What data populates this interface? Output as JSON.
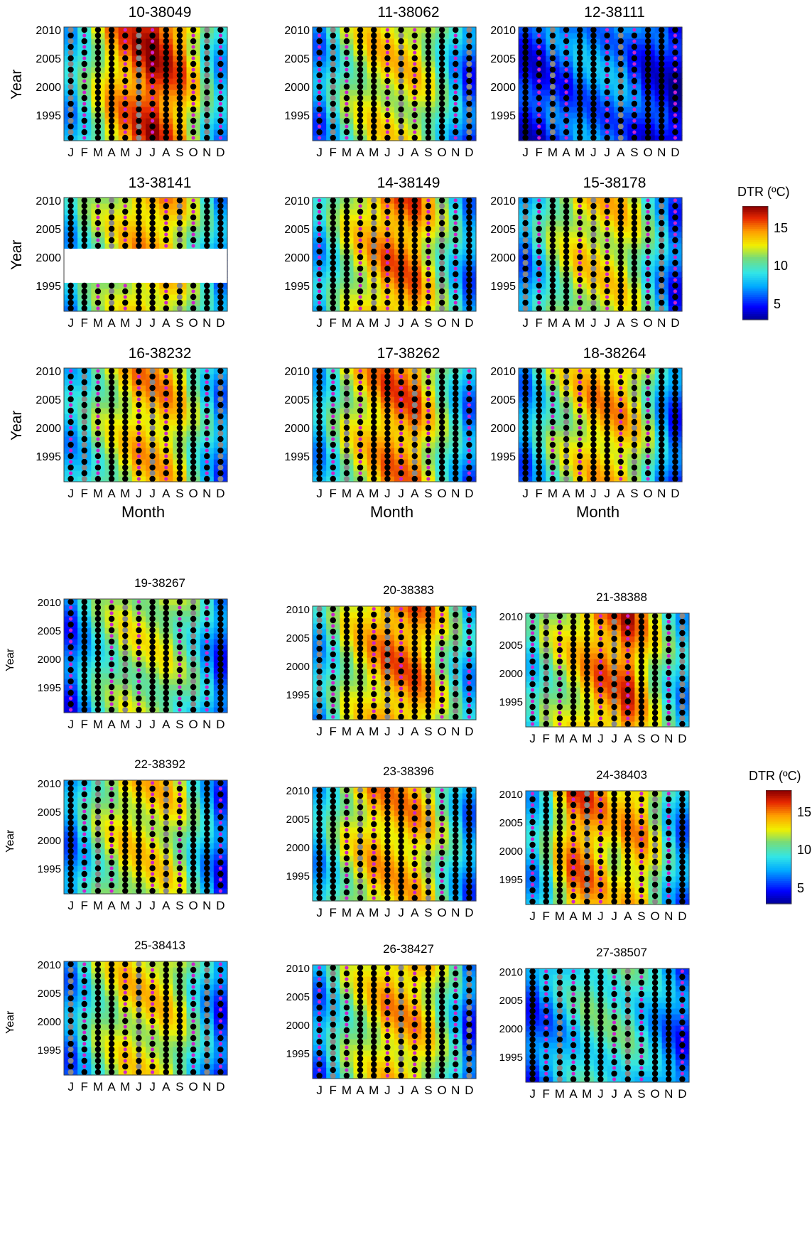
{
  "chart_data": {
    "type": "heatmap",
    "colorbar_label": "DTR (ºC)",
    "colorbar_ticks": [
      5,
      10,
      15
    ],
    "colorbar_range": [
      3,
      18
    ],
    "month_ticks": [
      "J",
      "F",
      "M",
      "A",
      "M",
      "J",
      "J",
      "A",
      "S",
      "O",
      "N",
      "D"
    ],
    "year_ticks": [
      1995,
      2000,
      2005,
      2010
    ],
    "year_range": [
      1991,
      2010
    ],
    "ylabel": "Year",
    "xlabel": "Month",
    "panels": [
      {
        "title": "10-38049",
        "profile": [
          8,
          10,
          12,
          14,
          15,
          16,
          17,
          16,
          15,
          13,
          10,
          8
        ]
      },
      {
        "title": "11-38062",
        "profile": [
          7,
          9,
          11,
          12,
          13,
          13,
          13,
          13,
          12,
          10,
          8,
          6
        ]
      },
      {
        "title": "12-38111",
        "profile": [
          5,
          5,
          6,
          6,
          7,
          7,
          7,
          7,
          6,
          5,
          5,
          4
        ]
      },
      {
        "title": "13-38141",
        "profile": [
          8,
          10,
          11,
          12,
          13,
          14,
          14,
          14,
          13,
          11,
          9,
          7
        ]
      },
      {
        "title": "14-38149",
        "profile": [
          8,
          10,
          12,
          13,
          14,
          15,
          15,
          15,
          13,
          11,
          9,
          7
        ]
      },
      {
        "title": "15-38178",
        "profile": [
          7,
          9,
          11,
          12,
          13,
          13,
          13,
          13,
          12,
          10,
          8,
          6
        ]
      },
      {
        "title": "16-38232",
        "profile": [
          8,
          9,
          11,
          12,
          13,
          14,
          14,
          14,
          13,
          11,
          9,
          7
        ]
      },
      {
        "title": "17-38262",
        "profile": [
          8,
          10,
          12,
          13,
          14,
          15,
          15,
          15,
          13,
          11,
          9,
          7
        ]
      },
      {
        "title": "18-38264",
        "profile": [
          7,
          9,
          11,
          12,
          13,
          14,
          14,
          14,
          13,
          11,
          8,
          6
        ]
      },
      {
        "title": "19-38267",
        "profile": [
          6,
          8,
          10,
          11,
          12,
          12,
          12,
          12,
          11,
          10,
          8,
          6
        ]
      },
      {
        "title": "20-38383",
        "profile": [
          8,
          10,
          12,
          13,
          14,
          15,
          15,
          15,
          14,
          12,
          10,
          8
        ]
      },
      {
        "title": "21-38388",
        "profile": [
          9,
          11,
          12,
          13,
          14,
          15,
          15,
          16,
          14,
          12,
          10,
          8
        ]
      },
      {
        "title": "22-38392",
        "profile": [
          7,
          9,
          11,
          12,
          13,
          13,
          13,
          13,
          12,
          10,
          8,
          6
        ]
      },
      {
        "title": "23-38396",
        "profile": [
          8,
          10,
          12,
          13,
          14,
          14,
          14,
          14,
          13,
          11,
          9,
          7
        ]
      },
      {
        "title": "24-38403",
        "profile": [
          8,
          10,
          13,
          15,
          15,
          14,
          13,
          14,
          14,
          12,
          9,
          7
        ]
      },
      {
        "title": "25-38413",
        "profile": [
          7,
          9,
          11,
          12,
          13,
          13,
          13,
          13,
          12,
          10,
          8,
          6
        ]
      },
      {
        "title": "26-38427",
        "profile": [
          7,
          9,
          11,
          12,
          13,
          14,
          14,
          14,
          13,
          11,
          9,
          6
        ]
      },
      {
        "title": "27-38507",
        "profile": [
          6,
          7,
          8,
          9,
          10,
          10,
          10,
          10,
          9,
          8,
          7,
          6
        ]
      }
    ]
  }
}
